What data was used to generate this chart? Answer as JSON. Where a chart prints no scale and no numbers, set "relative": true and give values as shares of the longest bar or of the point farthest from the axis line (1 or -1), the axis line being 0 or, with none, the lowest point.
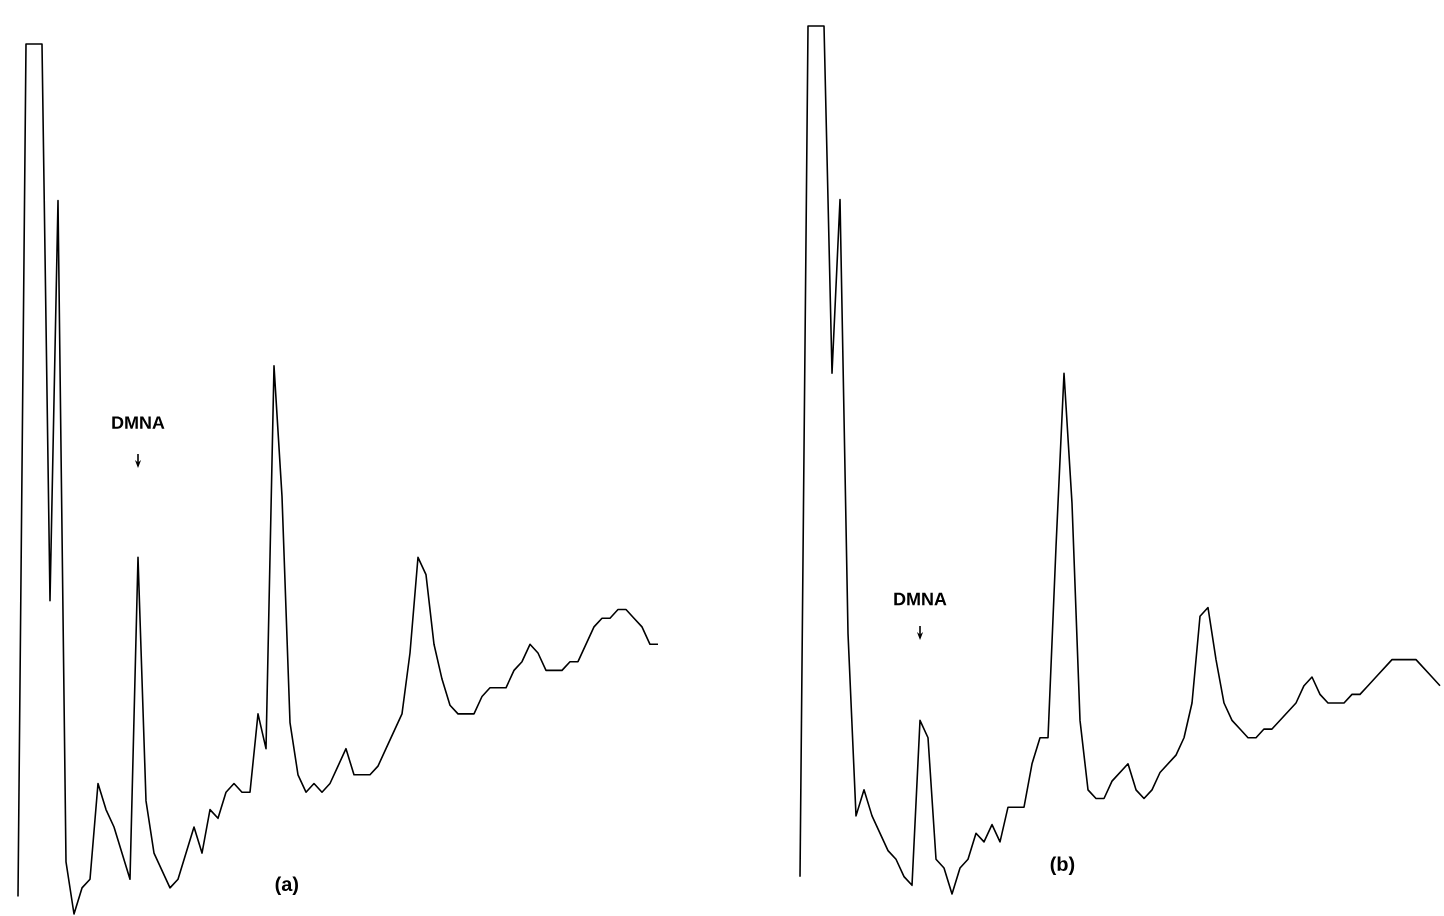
{
  "chart_data": [
    {
      "type": "line",
      "relative": true,
      "title": "(a)",
      "annotations": [
        "DMNA"
      ],
      "color": "#000000",
      "categories": [
        null,
        null,
        null,
        null,
        null,
        null,
        null,
        null,
        null,
        null,
        null,
        null,
        null,
        null,
        null,
        null,
        null,
        null,
        null,
        null,
        null,
        null,
        null,
        null,
        null,
        null,
        null,
        null,
        null,
        null,
        null,
        null,
        null,
        null,
        null,
        null,
        null,
        null,
        null,
        null,
        null,
        null,
        null,
        null,
        null,
        null,
        null,
        null,
        null,
        null,
        null,
        null,
        null,
        null,
        null,
        null,
        null,
        null,
        null,
        null,
        null,
        null,
        null,
        null,
        null,
        null,
        null,
        null,
        null,
        null,
        null,
        null,
        null,
        null,
        null,
        null,
        null,
        null,
        null,
        null,
        null
      ],
      "values": [
        0.02,
        1.0,
        1.0,
        1.0,
        0.36,
        0.82,
        0.06,
        0.0,
        0.03,
        0.04,
        0.15,
        0.12,
        0.1,
        0.07,
        0.04,
        0.41,
        0.13,
        0.07,
        0.05,
        0.03,
        0.04,
        0.07,
        0.1,
        0.07,
        0.12,
        0.11,
        0.14,
        0.15,
        0.14,
        0.14,
        0.23,
        0.19,
        0.63,
        0.48,
        0.22,
        0.16,
        0.14,
        0.15,
        0.14,
        0.15,
        0.17,
        0.19,
        0.16,
        0.16,
        0.16,
        0.17,
        0.19,
        0.21,
        0.23,
        0.3,
        0.41,
        0.39,
        0.31,
        0.27,
        0.24,
        0.23,
        0.23,
        0.23,
        0.25,
        0.26,
        0.26,
        0.26,
        0.28,
        0.29,
        0.31,
        0.3,
        0.28,
        0.28,
        0.28,
        0.29,
        0.29,
        0.31,
        0.33,
        0.34,
        0.34,
        0.35,
        0.35,
        0.34,
        0.33,
        0.31,
        0.31
      ]
    },
    {
      "type": "line",
      "relative": true,
      "title": "(b)",
      "annotations": [
        "DMNA"
      ],
      "color": "#000000",
      "categories": [
        null,
        null,
        null,
        null,
        null,
        null,
        null,
        null,
        null,
        null,
        null,
        null,
        null,
        null,
        null,
        null,
        null,
        null,
        null,
        null,
        null,
        null,
        null,
        null,
        null,
        null,
        null,
        null,
        null,
        null,
        null,
        null,
        null,
        null,
        null,
        null,
        null,
        null,
        null,
        null,
        null,
        null,
        null,
        null,
        null,
        null,
        null,
        null,
        null,
        null,
        null,
        null,
        null,
        null,
        null,
        null,
        null,
        null,
        null,
        null,
        null,
        null,
        null,
        null,
        null,
        null,
        null,
        null,
        null,
        null,
        null,
        null,
        null,
        null,
        null,
        null,
        null,
        null,
        null,
        null,
        null
      ],
      "values": [
        0.02,
        1.0,
        1.0,
        1.0,
        0.6,
        0.8,
        0.3,
        0.09,
        0.12,
        0.09,
        0.07,
        0.05,
        0.04,
        0.02,
        0.01,
        0.2,
        0.18,
        0.04,
        0.03,
        0.0,
        0.03,
        0.04,
        0.07,
        0.06,
        0.08,
        0.06,
        0.1,
        0.1,
        0.1,
        0.15,
        0.18,
        0.18,
        0.4,
        0.6,
        0.45,
        0.2,
        0.12,
        0.11,
        0.11,
        0.13,
        0.14,
        0.15,
        0.12,
        0.11,
        0.12,
        0.14,
        0.15,
        0.16,
        0.18,
        0.22,
        0.32,
        0.33,
        0.27,
        0.22,
        0.2,
        0.19,
        0.18,
        0.18,
        0.19,
        0.19,
        0.2,
        0.21,
        0.22,
        0.24,
        0.25,
        0.23,
        0.22,
        0.22,
        0.22,
        0.23,
        0.23,
        0.24,
        0.25,
        0.26,
        0.27,
        0.27,
        0.27,
        0.27,
        0.26,
        0.25,
        0.24
      ]
    }
  ]
}
